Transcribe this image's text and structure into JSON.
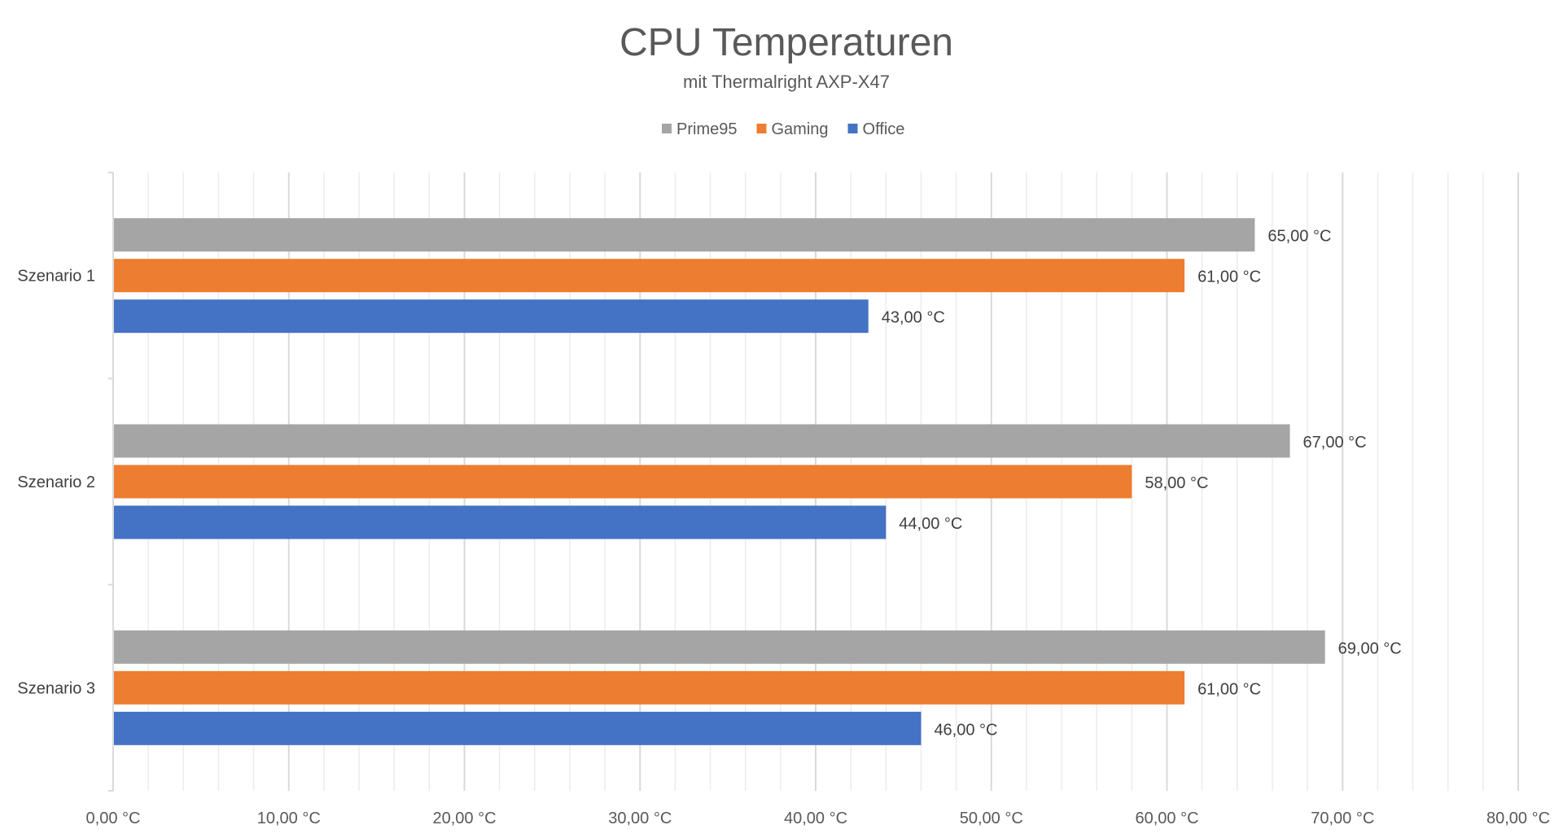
{
  "chart_data": {
    "type": "bar",
    "orientation": "horizontal",
    "title": "CPU Temperaturen",
    "subtitle": "mit Thermalright AXP-X47",
    "categories": [
      "Szenario 1",
      "Szenario 2",
      "Szenario 3"
    ],
    "series": [
      {
        "name": "Prime95",
        "color": "#a5a5a5",
        "values": [
          65,
          67,
          69
        ],
        "labels": [
          "65,00 °C",
          "67,00 °C",
          "69,00 °C"
        ]
      },
      {
        "name": "Gaming",
        "color": "#ed7d31",
        "values": [
          61,
          58,
          61
        ],
        "labels": [
          "61,00 °C",
          "58,00 °C",
          "61,00 °C"
        ]
      },
      {
        "name": "Office",
        "color": "#4472c4",
        "values": [
          43,
          44,
          46
        ],
        "labels": [
          "43,00 °C",
          "44,00 °C",
          "46,00 °C"
        ]
      }
    ],
    "xlim": [
      0,
      80
    ],
    "x_ticks": [
      0,
      10,
      20,
      30,
      40,
      50,
      60,
      70,
      80
    ],
    "x_tick_labels": [
      "0,00 °C",
      "10,00 °C",
      "20,00 °C",
      "30,00 °C",
      "40,00 °C",
      "50,00 °C",
      "60,00 °C",
      "70,00 °C",
      "80,00 °C"
    ],
    "minor_step": 2,
    "grid": true,
    "legend_position": "top"
  }
}
